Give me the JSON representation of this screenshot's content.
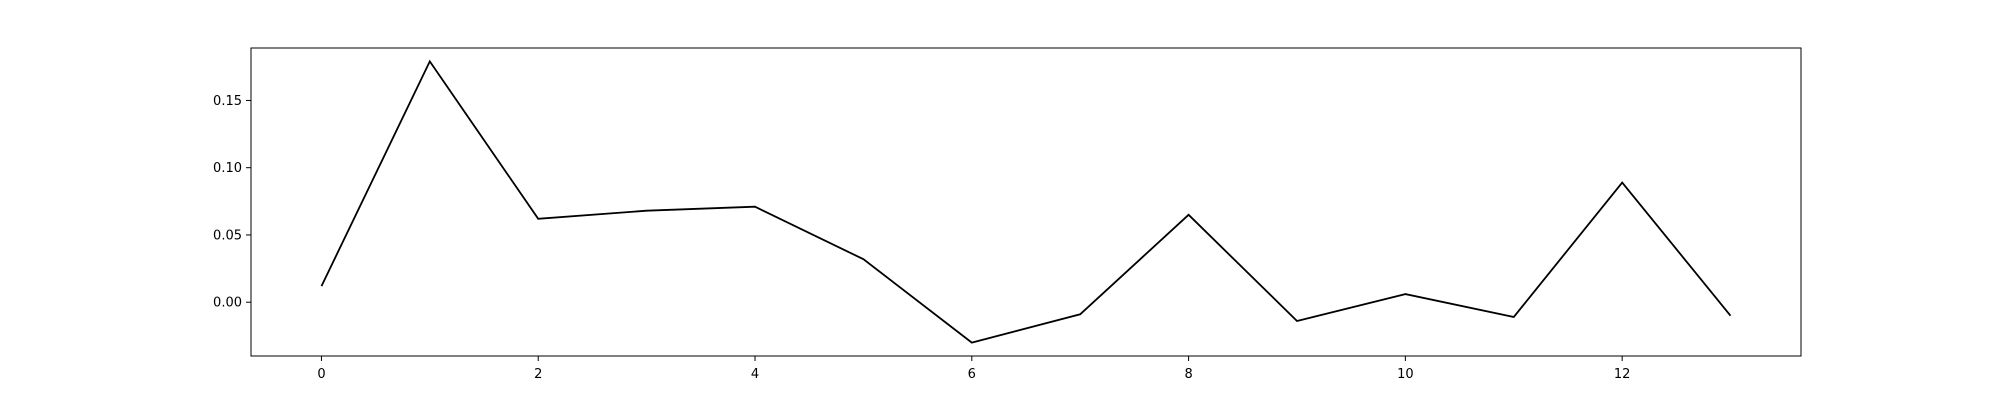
{
  "chart_data": {
    "type": "line",
    "title": "",
    "xlabel": "",
    "ylabel": "",
    "x": [
      0,
      1,
      2,
      3,
      4,
      5,
      6,
      7,
      8,
      9,
      10,
      11,
      12,
      13
    ],
    "series": [
      {
        "values": [
          0.012,
          0.179,
          0.062,
          0.068,
          0.071,
          0.032,
          -0.03,
          -0.009,
          0.065,
          -0.014,
          0.006,
          -0.011,
          0.089,
          -0.01
        ],
        "color": "#000000"
      }
    ],
    "xlim": [
      -0.65,
      13.65
    ],
    "ylim": [
      -0.04,
      0.189
    ],
    "xticks": [
      0,
      2,
      4,
      6,
      8,
      10,
      12
    ],
    "xtick_labels": [
      "0",
      "2",
      "4",
      "6",
      "8",
      "10",
      "12"
    ],
    "yticks": [
      0.0,
      0.05,
      0.1,
      0.15
    ],
    "ytick_labels": [
      "0.00",
      "0.05",
      "0.10",
      "0.15"
    ],
    "grid": false,
    "legend": "none"
  }
}
